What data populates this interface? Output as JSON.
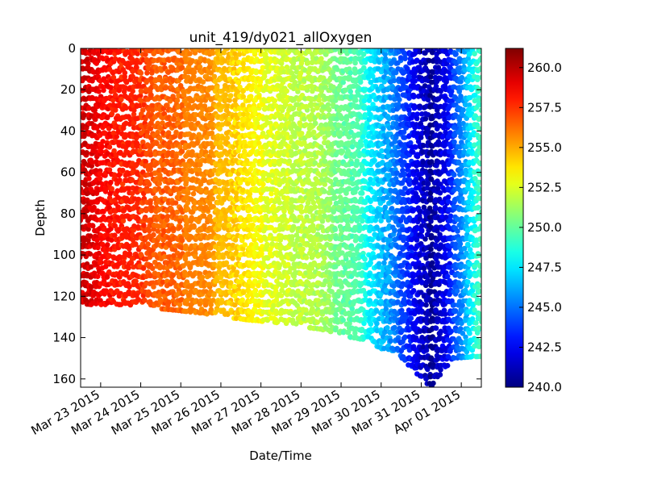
{
  "chart_data": {
    "type": "scatter",
    "title": "unit_419/dy021_allOxygen",
    "xlabel": "Date/Time",
    "ylabel": "Depth",
    "x_ticks": [
      "Mar 23 2015",
      "Mar 24 2015",
      "Mar 25 2015",
      "Mar 26 2015",
      "Mar 27 2015",
      "Mar 28 2015",
      "Mar 29 2015",
      "Mar 30 2015",
      "Mar 31 2015",
      "Apr 01 2015"
    ],
    "xlim": [
      "2015-03-22 12:00",
      "2015-04-01 12:00"
    ],
    "y_ticks": [
      "0",
      "20",
      "40",
      "60",
      "80",
      "100",
      "120",
      "140",
      "160"
    ],
    "ylim": [
      0,
      164
    ],
    "y_inverted": true,
    "colorbar": {
      "colormap": "jet",
      "range": [
        240.0,
        261.2
      ],
      "ticks": [
        "240.0",
        "242.5",
        "245.0",
        "247.5",
        "250.0",
        "252.5",
        "255.0",
        "257.5",
        "260.0"
      ]
    },
    "profiles": [
      {
        "time": "2015-03-22 12:00",
        "max_depth": 124,
        "oxygen": 259.5
      },
      {
        "time": "2015-03-23 12:00",
        "max_depth": 124,
        "oxygen": 258.0
      },
      {
        "time": "2015-03-24 12:00",
        "max_depth": 126,
        "oxygen": 256.8
      },
      {
        "time": "2015-03-25 12:00",
        "max_depth": 128,
        "oxygen": 255.8
      },
      {
        "time": "2015-03-26 12:00",
        "max_depth": 131,
        "oxygen": 253.8
      },
      {
        "time": "2015-03-27 12:00",
        "max_depth": 133,
        "oxygen": 252.5
      },
      {
        "time": "2015-03-28 12:00",
        "max_depth": 136,
        "oxygen": 251.5
      },
      {
        "time": "2015-03-29 12:00",
        "max_depth": 141,
        "oxygen": 249.0
      },
      {
        "time": "2015-03-30 12:00",
        "max_depth": 149,
        "oxygen": 244.5
      },
      {
        "time": "2015-03-31 06:00",
        "max_depth": 164,
        "oxygen": 240.5
      },
      {
        "time": "2015-03-31 18:00",
        "max_depth": 150,
        "oxygen": 243.0
      },
      {
        "time": "2015-04-01 12:00",
        "max_depth": 149,
        "oxygen": 250.0
      }
    ]
  }
}
